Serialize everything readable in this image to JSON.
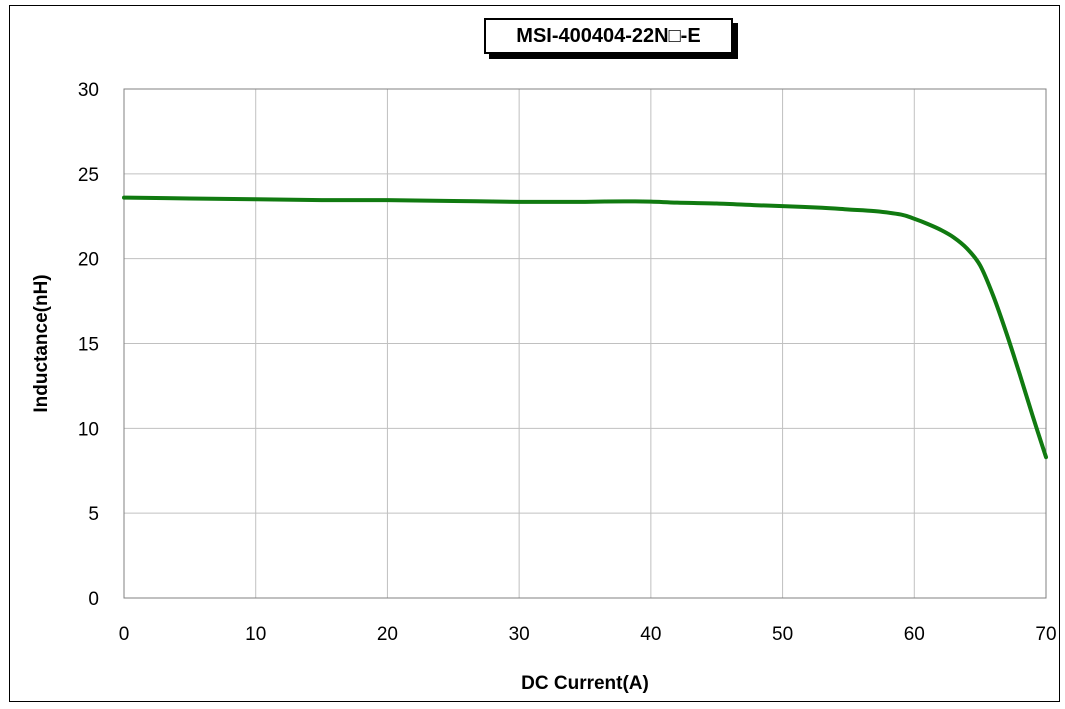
{
  "chart_data": {
    "type": "line",
    "title": "MSI-400404-22N□-E",
    "xlabel": "DC Current(A)",
    "ylabel": "Inductance(nH)",
    "xlim": [
      0,
      70
    ],
    "ylim": [
      0,
      30
    ],
    "xticks": [
      0,
      10,
      20,
      30,
      40,
      50,
      60,
      70
    ],
    "yticks": [
      0,
      5,
      10,
      15,
      20,
      25,
      30
    ],
    "grid": true,
    "legend": "none",
    "series": [
      {
        "color": "#107a10",
        "x": [
          0,
          5,
          10,
          15,
          20,
          25,
          30,
          33,
          35,
          38,
          40,
          42,
          45,
          48,
          50,
          53,
          55,
          57,
          59,
          60,
          61,
          62,
          63,
          64,
          65,
          66,
          67,
          68,
          69,
          70
        ],
        "y": [
          23.6,
          23.55,
          23.5,
          23.45,
          23.45,
          23.4,
          23.35,
          23.35,
          23.35,
          23.38,
          23.36,
          23.3,
          23.25,
          23.15,
          23.1,
          23.0,
          22.9,
          22.8,
          22.6,
          22.35,
          22.05,
          21.7,
          21.25,
          20.6,
          19.6,
          17.8,
          15.6,
          13.2,
          10.7,
          8.3
        ]
      }
    ]
  }
}
